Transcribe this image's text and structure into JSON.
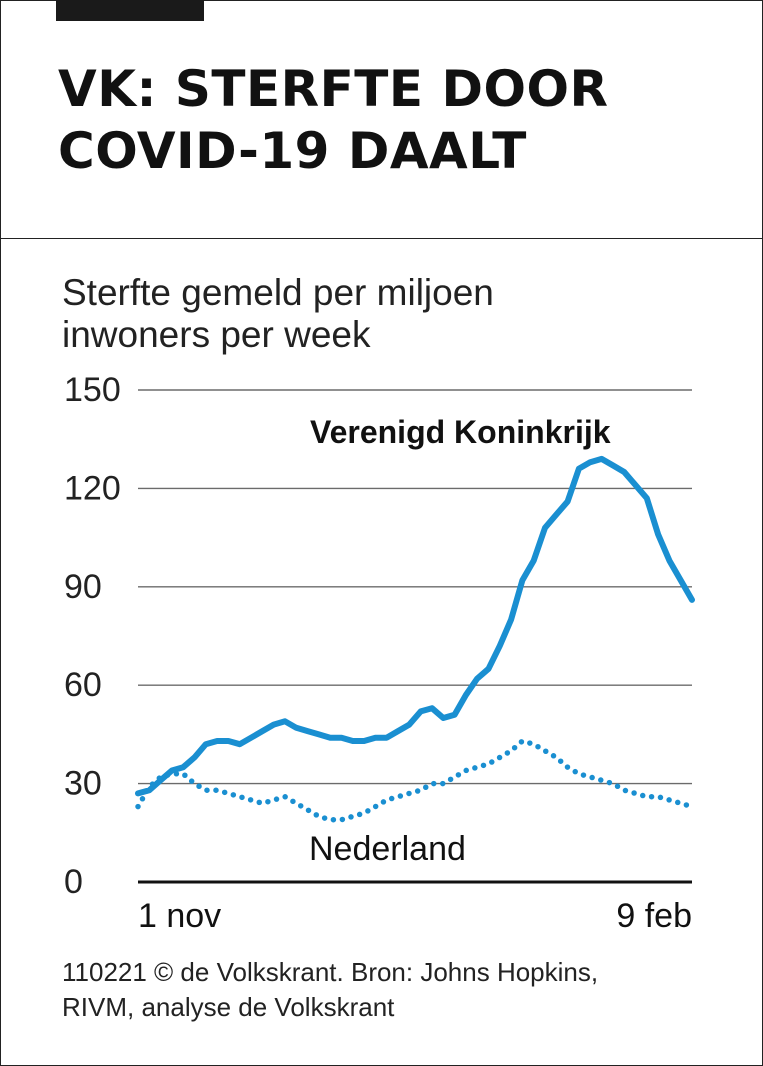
{
  "header": {
    "title_line1": "VK: STERFTE DOOR",
    "title_line2": "COVID-19 DAALT"
  },
  "subtitle_line1": "Sterfte gemeld per miljoen",
  "subtitle_line2": "inwoners per week",
  "source_line1": "110221 © de Volkskrant. Bron: Johns Hopkins,",
  "source_line2": "RIVM, analyse de Volkskrant",
  "chart_data": {
    "type": "line",
    "x_start": "2020-11-01",
    "x_end": "2021-02-09",
    "x_tick_labels": [
      "1 nov",
      "9 feb"
    ],
    "ylim": [
      0,
      150
    ],
    "y_ticks": [
      0,
      30,
      60,
      90,
      120,
      150
    ],
    "grid": true,
    "series": [
      {
        "name": "Verenigd Koninkrijk",
        "style": "solid",
        "color": "#1a8fd1",
        "values": [
          27,
          28,
          31,
          34,
          35,
          38,
          42,
          43,
          43,
          42,
          44,
          46,
          48,
          49,
          47,
          46,
          45,
          44,
          44,
          43,
          43,
          44,
          44,
          46,
          48,
          52,
          53,
          50,
          51,
          57,
          62,
          65,
          72,
          80,
          92,
          98,
          108,
          112,
          116,
          126,
          128,
          129,
          127,
          125,
          121,
          117,
          106,
          98,
          92,
          86
        ]
      },
      {
        "name": "Nederland",
        "style": "dotted",
        "color": "#1a8fd1",
        "values": [
          23,
          29,
          32,
          33,
          33,
          30,
          28,
          28,
          27,
          26,
          25,
          24,
          25,
          26,
          24,
          22,
          20,
          19,
          19,
          20,
          21,
          23,
          25,
          26,
          27,
          28,
          30,
          30,
          32,
          34,
          35,
          36,
          38,
          40,
          43,
          42,
          40,
          38,
          35,
          33,
          32,
          31,
          30,
          28,
          27,
          26,
          26,
          25,
          24,
          23
        ]
      }
    ]
  }
}
